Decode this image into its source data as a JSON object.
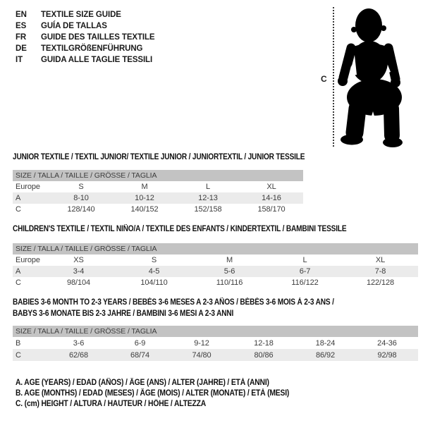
{
  "header": {
    "entries": [
      {
        "code": "EN",
        "title": "TEXTILE SIZE GUIDE"
      },
      {
        "code": "ES",
        "title": "GUÍA DE TALLAS"
      },
      {
        "code": "FR",
        "title": "GUIDE DES TAILLES TEXTILE"
      },
      {
        "code": "DE",
        "title": "TEXTILGRÖßENFÜHRUNG"
      },
      {
        "code": "IT",
        "title": "GUIDA ALLE TAGLIE TESSILI"
      }
    ]
  },
  "figure": {
    "height_label": "C",
    "description": "black standing toddler silhouette with dotted height line"
  },
  "sections": [
    {
      "id": "junior",
      "title_lines": [
        "JUNIOR TEXTILE / TEXTIL JUNIOR/ TEXTILE JUNIOR / JUNIORTEXTIL / JUNIOR TESSILE"
      ],
      "size_band": "SIZE / TALLA / TAILLE / GRÖSSE / TAGLIA",
      "rows": [
        [
          "Europe",
          "S",
          "M",
          "L",
          "XL"
        ],
        [
          "A",
          "8-10",
          "10-12",
          "12-13",
          "14-16"
        ],
        [
          "C",
          "128/140",
          "140/152",
          "152/158",
          "158/170"
        ]
      ],
      "shaded_row": 1
    },
    {
      "id": "children",
      "title_lines": [
        "CHILDREN'S TEXTILE / TEXTIL NIÑO/A / TEXTILE DES ENFANTS / KINDERTEXTIL / BAMBINI TESSILE"
      ],
      "size_band": "SIZE / TALLA / TAILLE / GRÖSSE / TAGLIA",
      "rows": [
        [
          "Europe",
          "XS",
          "S",
          "M",
          "L",
          "XL"
        ],
        [
          "A",
          "3-4",
          "4-5",
          "5-6",
          "6-7",
          "7-8"
        ],
        [
          "C",
          "98/104",
          "104/110",
          "110/116",
          "116/122",
          "122/128"
        ]
      ],
      "shaded_row": 1
    },
    {
      "id": "babies",
      "title_lines": [
        "BABIES 3-6 MONTH TO 2-3 YEARS / BEBÉS 3-6 MESES A 2-3 AÑOS / BÉBÉS 3-6 MOIS À 2-3 ANS /",
        "BABYS 3-6 MONATE BIS 2-3 JAHRE / BAMBINI 3-6 MESI A 2-3 ANNI"
      ],
      "size_band": "SIZE / TALLA / TAILLE / GRÖSSE / TAGLIA",
      "rows": [
        [
          "B",
          "3-6",
          "6-9",
          "9-12",
          "12-18",
          "18-24",
          "24-36"
        ],
        [
          "C",
          "62/68",
          "68/74",
          "74/80",
          "80/86",
          "86/92",
          "92/98"
        ]
      ],
      "shaded_row": 1
    }
  ],
  "legend": {
    "lines": [
      "A. AGE (YEARS) / EDAD (AÑOS) / ÂGE (ANS) / ALTER (JAHRE) / ETÀ (ANNI)",
      "B. AGE (MONTHS) / EDAD (MESES) / ÂGE (MOIS) / ALTER (MONATE) / ETÀ (MESI)",
      "C. (cm) HEIGHT / ALTURA / HAUTEUR / HÖHE / ALTEZZA"
    ]
  },
  "colors": {
    "band_bg": "#c3c3c3",
    "alt_row_bg": "#ebebeb",
    "title_text": "#111111",
    "table_text": "#3d3d3d",
    "silhouette": "#000000",
    "page_bg": "#ffffff"
  }
}
